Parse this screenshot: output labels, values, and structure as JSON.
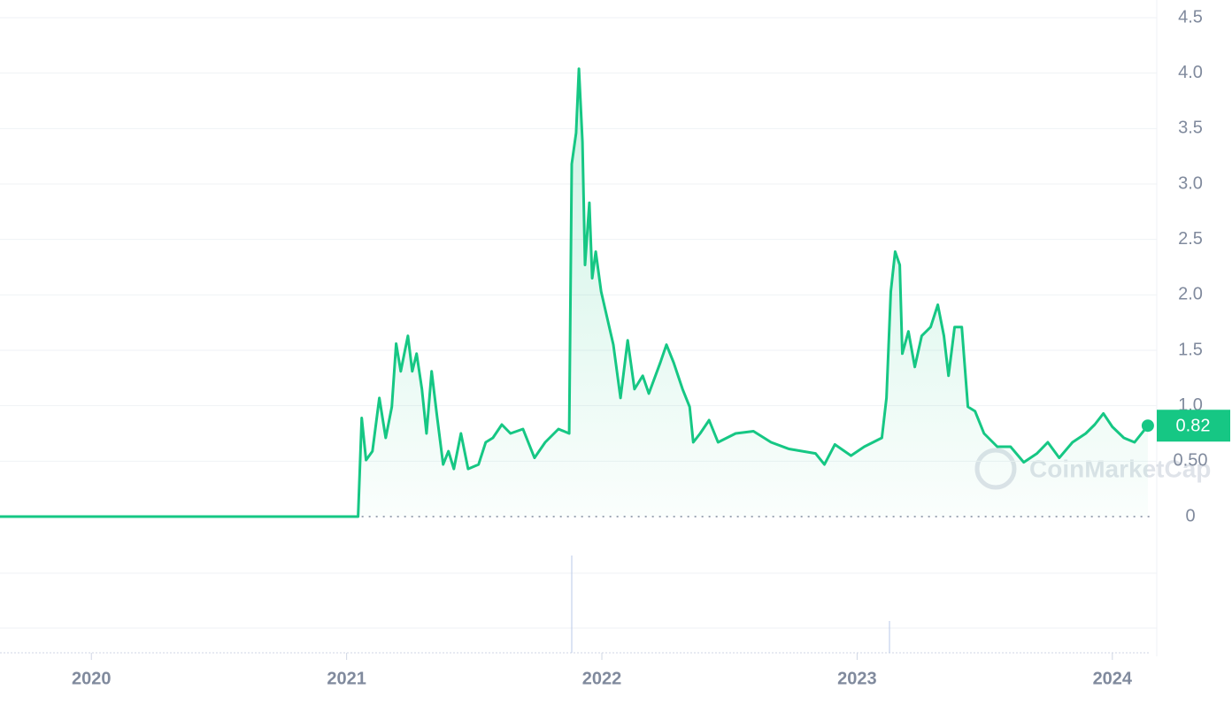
{
  "chart_data": {
    "type": "line",
    "color": "#16c784",
    "grid": true,
    "xlim": [
      2019.642,
      2024.174
    ],
    "xticks": [
      2020,
      2021,
      2022,
      2023,
      2024
    ],
    "ylim": [
      0,
      4.5
    ],
    "yticks": [
      0,
      {
        "value": 0.5,
        "label": "0.50"
      },
      {
        "value": 1,
        "label": "1.0"
      },
      1.5,
      {
        "value": 2,
        "label": "2.0"
      },
      2.5,
      {
        "value": 3,
        "label": "3.0"
      },
      3.5,
      {
        "value": 4,
        "label": "4.0"
      },
      4.5
    ],
    "x": [
      2019.642,
      2021.045,
      2021.059,
      2021.076,
      2021.101,
      2021.128,
      2021.153,
      2021.177,
      2021.194,
      2021.212,
      2021.226,
      2021.24,
      2021.257,
      2021.274,
      2021.295,
      2021.313,
      2021.333,
      2021.354,
      2021.378,
      2021.399,
      2021.42,
      2021.448,
      2021.476,
      2021.517,
      2021.545,
      2021.573,
      2021.608,
      2021.642,
      2021.691,
      2021.736,
      2021.778,
      2021.83,
      2021.872,
      2021.882,
      2021.899,
      2021.91,
      2021.924,
      2021.934,
      2021.951,
      2021.962,
      2021.976,
      2021.997,
      2022.021,
      2022.045,
      2022.073,
      2022.101,
      2022.128,
      2022.16,
      2022.184,
      2022.229,
      2022.253,
      2022.281,
      2022.316,
      2022.344,
      2022.358,
      2022.385,
      2022.42,
      2022.455,
      2022.524,
      2022.594,
      2022.663,
      2022.733,
      2022.837,
      2022.872,
      2022.913,
      2022.976,
      2023.028,
      2023.097,
      2023.115,
      2023.132,
      2023.149,
      2023.167,
      2023.177,
      2023.201,
      2023.226,
      2023.253,
      2023.288,
      2023.316,
      2023.34,
      2023.358,
      2023.382,
      2023.41,
      2023.434,
      2023.462,
      2023.497,
      2023.549,
      2023.601,
      2023.653,
      2023.705,
      2023.747,
      2023.792,
      2023.844,
      2023.896,
      2023.931,
      2023.965,
      2024.0,
      2024.045,
      2024.087,
      2024.139
    ],
    "values": [
      0,
      0,
      0.89,
      0.51,
      0.59,
      1.07,
      0.71,
      0.99,
      1.56,
      1.31,
      1.47,
      1.63,
      1.31,
      1.47,
      1.15,
      0.75,
      1.31,
      0.91,
      0.47,
      0.59,
      0.43,
      0.75,
      0.43,
      0.47,
      0.67,
      0.71,
      0.83,
      0.75,
      0.79,
      0.53,
      0.67,
      0.79,
      0.75,
      3.18,
      3.46,
      4.04,
      3.38,
      2.27,
      2.83,
      2.15,
      2.39,
      2.03,
      1.79,
      1.55,
      1.07,
      1.59,
      1.15,
      1.27,
      1.11,
      1.39,
      1.55,
      1.39,
      1.15,
      0.99,
      0.67,
      0.75,
      0.87,
      0.67,
      0.75,
      0.77,
      0.67,
      0.61,
      0.57,
      0.47,
      0.65,
      0.55,
      0.63,
      0.71,
      1.07,
      2.03,
      2.39,
      2.27,
      1.47,
      1.67,
      1.35,
      1.63,
      1.71,
      1.91,
      1.63,
      1.27,
      1.71,
      1.71,
      0.99,
      0.95,
      0.75,
      0.63,
      0.63,
      0.49,
      0.57,
      0.67,
      0.53,
      0.67,
      0.75,
      0.83,
      0.93,
      0.81,
      0.71,
      0.67,
      0.82
    ],
    "current_price": 0.82,
    "watermark": "CoinMarketCap"
  }
}
